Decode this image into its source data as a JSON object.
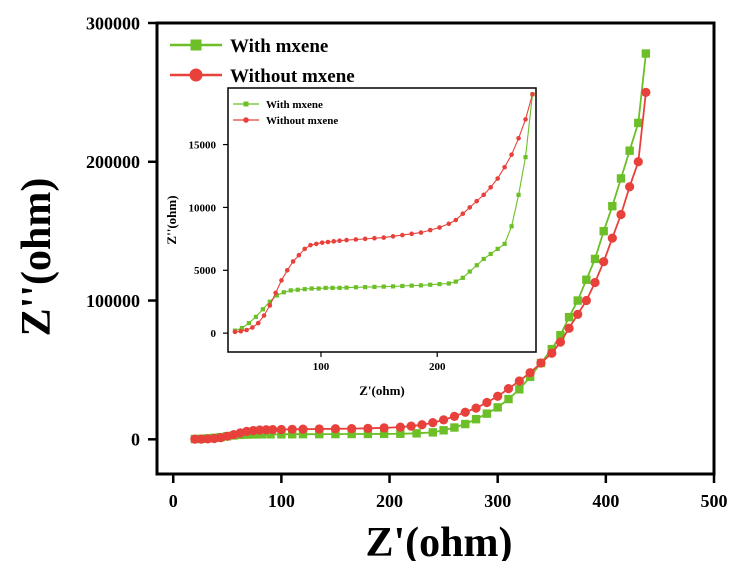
{
  "chart_data": [
    {
      "type": "line",
      "xlabel": "Z'(ohm)",
      "ylabel": "Z''(ohm)",
      "xlim": [
        -15,
        500
      ],
      "ylim": [
        -25000,
        300000
      ],
      "xticks": [
        0,
        100,
        200,
        300,
        400,
        500
      ],
      "yticks": [
        0,
        100000,
        200000,
        300000
      ],
      "xtick_labels": [
        "0",
        "100",
        "200",
        "300",
        "400",
        "500"
      ],
      "ytick_labels": [
        "0",
        "100000",
        "200000",
        "300000"
      ],
      "legend_position": "top-left",
      "series": [
        {
          "name": "With mxene",
          "color": "#6cbf26",
          "marker": "square",
          "x": [
            20,
            26,
            32,
            38,
            44,
            50,
            56,
            62,
            68,
            75,
            82,
            90,
            100,
            110,
            120,
            135,
            150,
            165,
            180,
            195,
            210,
            225,
            240,
            250,
            260,
            270,
            280,
            290,
            300,
            310,
            320,
            330,
            340,
            350,
            358,
            366,
            374,
            382,
            390,
            398,
            406,
            414,
            422,
            430,
            437
          ],
          "y": [
            200,
            400,
            700,
            1100,
            1600,
            2200,
            2800,
            3200,
            3400,
            3500,
            3600,
            3600,
            3600,
            3650,
            3700,
            3700,
            3750,
            3800,
            3850,
            3900,
            4000,
            4300,
            5000,
            6500,
            8500,
            11000,
            14500,
            18500,
            23000,
            29000,
            36000,
            45000,
            55000,
            65000,
            75000,
            88000,
            100000,
            115000,
            130000,
            150000,
            168000,
            188000,
            208000,
            228000,
            278000
          ]
        },
        {
          "name": "Without mxene",
          "color": "#e8413c",
          "marker": "circle",
          "x": [
            20,
            26,
            32,
            38,
            44,
            50,
            56,
            62,
            68,
            74,
            80,
            86,
            92,
            100,
            110,
            120,
            135,
            150,
            165,
            180,
            195,
            210,
            220,
            230,
            240,
            250,
            260,
            270,
            280,
            290,
            300,
            310,
            320,
            330,
            340,
            350,
            358,
            366,
            374,
            382,
            390,
            398,
            406,
            414,
            422,
            430,
            437
          ],
          "y": [
            100,
            150,
            300,
            600,
            1200,
            2200,
            3400,
            4600,
            5700,
            6300,
            6700,
            6900,
            7000,
            7100,
            7200,
            7300,
            7400,
            7600,
            7700,
            7900,
            8200,
            8800,
            9500,
            10500,
            12000,
            14000,
            16500,
            19500,
            22500,
            26500,
            31000,
            36500,
            42000,
            48000,
            55000,
            62000,
            70000,
            80000,
            90000,
            100000,
            113000,
            128000,
            145000,
            162000,
            182000,
            200000,
            250000
          ]
        }
      ]
    },
    {
      "type": "line",
      "xlabel": "Z'(ohm)",
      "ylabel": "Z''(ohm)",
      "xlim": [
        20,
        285
      ],
      "ylim": [
        -1500,
        19500
      ],
      "xticks": [
        100,
        200
      ],
      "yticks": [
        0,
        5000,
        10000,
        15000
      ],
      "xtick_labels": [
        "100",
        "200"
      ],
      "ytick_labels": [
        "0",
        "5000",
        "10000",
        "15000"
      ],
      "legend_position": "top-left",
      "series": [
        {
          "name": "With mxene",
          "color": "#6cbf26",
          "marker": "square",
          "x": [
            26,
            32,
            38,
            44,
            50,
            56,
            62,
            68,
            74,
            80,
            86,
            92,
            98,
            104,
            110,
            116,
            122,
            130,
            138,
            146,
            154,
            162,
            170,
            178,
            186,
            194,
            202,
            210,
            216,
            222,
            228,
            234,
            240,
            246,
            252,
            258,
            264,
            270,
            276,
            282
          ],
          "y": [
            200,
            400,
            800,
            1300,
            1900,
            2500,
            3000,
            3250,
            3400,
            3450,
            3500,
            3550,
            3550,
            3600,
            3600,
            3600,
            3620,
            3650,
            3660,
            3680,
            3700,
            3720,
            3750,
            3780,
            3800,
            3850,
            3900,
            3950,
            4100,
            4400,
            4900,
            5400,
            5900,
            6300,
            6700,
            7100,
            8500,
            11000,
            14000,
            19000
          ]
        },
        {
          "name": "Without mxene",
          "color": "#e8413c",
          "marker": "circle",
          "x": [
            26,
            31,
            36,
            41,
            46,
            51,
            56,
            61,
            66,
            71,
            76,
            81,
            86,
            91,
            96,
            101,
            106,
            111,
            116,
            122,
            130,
            138,
            146,
            154,
            162,
            170,
            178,
            186,
            194,
            202,
            210,
            216,
            222,
            228,
            234,
            240,
            246,
            252,
            258,
            264,
            270,
            276,
            282
          ],
          "y": [
            100,
            150,
            250,
            450,
            800,
            1400,
            2200,
            3200,
            4200,
            5000,
            5700,
            6200,
            6700,
            7000,
            7100,
            7200,
            7250,
            7300,
            7350,
            7400,
            7450,
            7500,
            7550,
            7600,
            7700,
            7800,
            7900,
            8000,
            8200,
            8400,
            8700,
            9000,
            9500,
            10000,
            10500,
            11000,
            11600,
            12300,
            13200,
            14200,
            15500,
            17000,
            19000
          ]
        }
      ]
    }
  ]
}
